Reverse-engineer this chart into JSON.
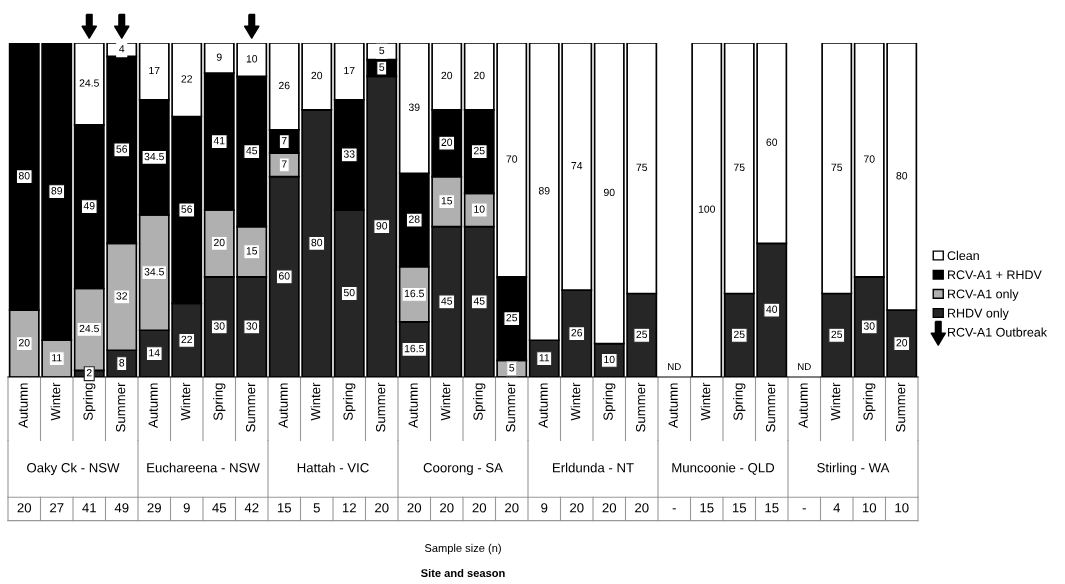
{
  "chart_data": {
    "type": "bar",
    "stacked": true,
    "data_labels": true,
    "legend": "right",
    "grid": false,
    "categories": [
      "Autumn",
      "Winter",
      "Spring",
      "Summer",
      "Autumn",
      "Winter",
      "Spring",
      "Summer",
      "Autumn",
      "Winter",
      "Spring",
      "Summer",
      "Autumn",
      "Winter",
      "Spring",
      "Summer",
      "Autumn",
      "Winter",
      "Spring",
      "Summer",
      "Autumn",
      "Winter",
      "Spring",
      "Summer",
      "Autumn",
      "Winter",
      "Spring",
      "Summer"
    ],
    "series": [
      {
        "name": "RHDV only",
        "color": "#262626",
        "values": [
          null,
          null,
          2,
          8,
          14,
          22,
          30,
          30,
          60,
          80,
          50,
          90,
          16.5,
          45,
          45,
          null,
          11,
          26,
          10,
          25,
          null,
          null,
          25,
          40,
          null,
          25,
          30,
          20
        ]
      },
      {
        "name": "RCV-A1 only",
        "color": "#b0b0b0",
        "values": [
          20,
          11,
          24.5,
          32,
          34.5,
          null,
          20,
          15,
          7,
          null,
          null,
          null,
          16.5,
          15,
          10,
          5,
          null,
          null,
          null,
          null,
          null,
          null,
          null,
          null,
          null,
          null,
          null,
          null
        ]
      },
      {
        "name": "RCV-A1 + RHDV",
        "color": "#000000",
        "values": [
          80,
          89,
          49,
          56,
          34.5,
          56,
          41,
          45,
          7,
          null,
          33,
          5,
          28,
          20,
          25,
          25,
          null,
          null,
          null,
          null,
          null,
          null,
          null,
          null,
          null,
          null,
          null,
          null
        ]
      },
      {
        "name": "Clean",
        "color": "#ffffff",
        "values": [
          null,
          null,
          24.5,
          4,
          17,
          22,
          9,
          10,
          26,
          20,
          17,
          5,
          39,
          20,
          20,
          70,
          89,
          74,
          90,
          75,
          null,
          100,
          75,
          60,
          null,
          75,
          70,
          80
        ]
      },
      {
        "name": "RCV-A1 Outbreak",
        "type": "scatter",
        "color": "#000000",
        "values": [
          null,
          null,
          105,
          105,
          null,
          null,
          null,
          105,
          null,
          null,
          null,
          null,
          null,
          null,
          null,
          null,
          null,
          null,
          null,
          null,
          null,
          null,
          null,
          null,
          null,
          null,
          null,
          null
        ],
        "value_labels": [
          null,
          null,
          null,
          null,
          null,
          null,
          null,
          null,
          null,
          null,
          null,
          null,
          null,
          null,
          null,
          null,
          null,
          null,
          null,
          null,
          null,
          null,
          null,
          null,
          null,
          null,
          null,
          null
        ]
      }
    ],
    "annotations": [
      "Oaky Ck - NSW",
      "Euchareena - NSW",
      "Hattah - VIC",
      "Coorong - SA",
      "Erldunda - NT",
      "Muncoonie - QLD",
      "Stirling - WA",
      "20",
      "27",
      "41",
      "49",
      "29",
      "9",
      "45",
      "42",
      "15",
      "5",
      "12",
      "20",
      "20",
      "20",
      "20",
      "20",
      "9",
      "20",
      "20",
      "20",
      "-",
      "15",
      "15",
      "15",
      "-",
      "4",
      "10",
      "10",
      "Sample size (n)",
      "Site and season",
      "ND",
      "ND"
    ]
  }
}
